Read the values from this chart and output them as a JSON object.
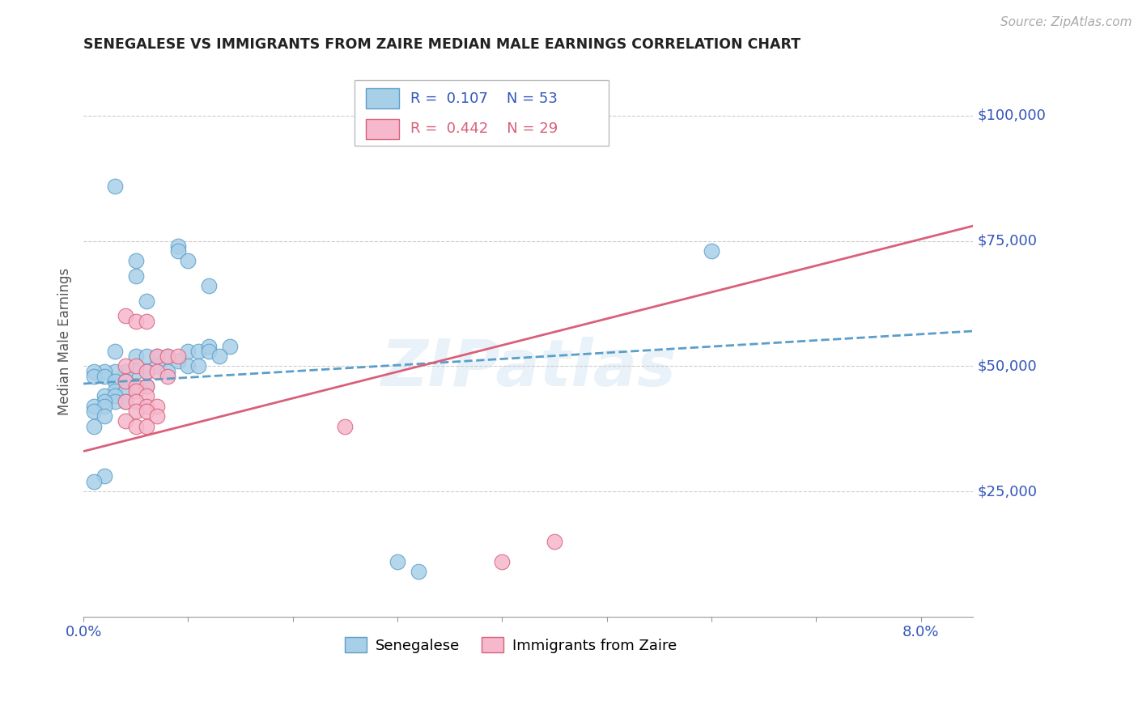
{
  "title": "SENEGALESE VS IMMIGRANTS FROM ZAIRE MEDIAN MALE EARNINGS CORRELATION CHART",
  "source": "Source: ZipAtlas.com",
  "ylabel": "Median Male Earnings",
  "y_tick_values": [
    25000,
    50000,
    75000,
    100000
  ],
  "y_tick_labels": [
    "$25,000",
    "$50,000",
    "$75,000",
    "$100,000"
  ],
  "y_min": 0,
  "y_max": 110000,
  "x_min": 0.0,
  "x_max": 0.085,
  "blue_color": "#a8cfe8",
  "blue_edge": "#5b9ec9",
  "pink_color": "#f5b8cc",
  "pink_edge": "#d9607a",
  "blue_trend_color": "#5b9ec9",
  "pink_trend_color": "#d9607a",
  "blue_scatter": [
    [
      0.003,
      86000
    ],
    [
      0.005,
      71000
    ],
    [
      0.005,
      68000
    ],
    [
      0.009,
      74000
    ],
    [
      0.009,
      73000
    ],
    [
      0.01,
      71000
    ],
    [
      0.012,
      66000
    ],
    [
      0.006,
      63000
    ],
    [
      0.003,
      53000
    ],
    [
      0.005,
      52000
    ],
    [
      0.006,
      52000
    ],
    [
      0.007,
      52000
    ],
    [
      0.008,
      52000
    ],
    [
      0.01,
      53000
    ],
    [
      0.011,
      53000
    ],
    [
      0.012,
      54000
    ],
    [
      0.014,
      54000
    ],
    [
      0.012,
      53000
    ],
    [
      0.013,
      52000
    ],
    [
      0.009,
      51000
    ],
    [
      0.01,
      50000
    ],
    [
      0.011,
      50000
    ],
    [
      0.007,
      50000
    ],
    [
      0.008,
      49000
    ],
    [
      0.006,
      49000
    ],
    [
      0.005,
      49000
    ],
    [
      0.004,
      49000
    ],
    [
      0.003,
      49000
    ],
    [
      0.002,
      49000
    ],
    [
      0.001,
      49000
    ],
    [
      0.001,
      48000
    ],
    [
      0.002,
      48000
    ],
    [
      0.003,
      47000
    ],
    [
      0.004,
      47000
    ],
    [
      0.005,
      46000
    ],
    [
      0.006,
      46000
    ],
    [
      0.003,
      45000
    ],
    [
      0.004,
      45000
    ],
    [
      0.002,
      44000
    ],
    [
      0.003,
      44000
    ],
    [
      0.004,
      43000
    ],
    [
      0.003,
      43000
    ],
    [
      0.002,
      43000
    ],
    [
      0.001,
      42000
    ],
    [
      0.002,
      42000
    ],
    [
      0.001,
      41000
    ],
    [
      0.002,
      40000
    ],
    [
      0.001,
      38000
    ],
    [
      0.002,
      28000
    ],
    [
      0.001,
      27000
    ],
    [
      0.03,
      11000
    ],
    [
      0.032,
      9000
    ],
    [
      0.06,
      73000
    ]
  ],
  "pink_scatter": [
    [
      0.004,
      60000
    ],
    [
      0.005,
      59000
    ],
    [
      0.006,
      59000
    ],
    [
      0.007,
      52000
    ],
    [
      0.008,
      52000
    ],
    [
      0.009,
      52000
    ],
    [
      0.004,
      50000
    ],
    [
      0.005,
      50000
    ],
    [
      0.006,
      49000
    ],
    [
      0.007,
      49000
    ],
    [
      0.008,
      48000
    ],
    [
      0.004,
      47000
    ],
    [
      0.005,
      46000
    ],
    [
      0.006,
      46000
    ],
    [
      0.005,
      45000
    ],
    [
      0.006,
      44000
    ],
    [
      0.004,
      43000
    ],
    [
      0.005,
      43000
    ],
    [
      0.006,
      42000
    ],
    [
      0.007,
      42000
    ],
    [
      0.005,
      41000
    ],
    [
      0.006,
      41000
    ],
    [
      0.007,
      40000
    ],
    [
      0.004,
      39000
    ],
    [
      0.005,
      38000
    ],
    [
      0.006,
      38000
    ],
    [
      0.025,
      38000
    ],
    [
      0.04,
      11000
    ],
    [
      0.045,
      15000
    ]
  ],
  "blue_trend_x": [
    0.0,
    0.085
  ],
  "blue_trend_y": [
    46500,
    57000
  ],
  "pink_trend_x": [
    0.0,
    0.085
  ],
  "pink_trend_y": [
    33000,
    78000
  ],
  "watermark": "ZIPatlas",
  "bg_color": "#ffffff",
  "grid_color": "#cccccc"
}
